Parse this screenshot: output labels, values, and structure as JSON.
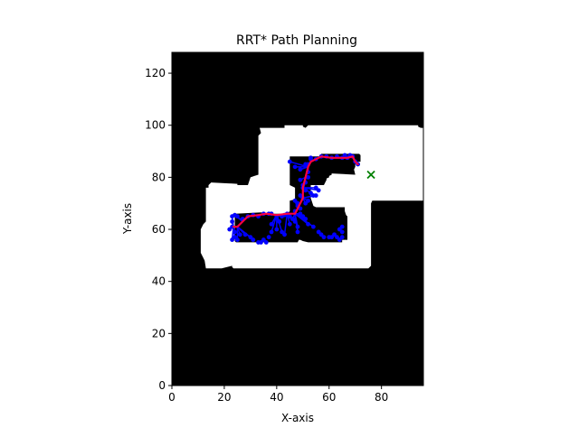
{
  "chart_data": {
    "type": "scatter",
    "title": "RRT* Path Planning",
    "xlabel": "X-axis",
    "ylabel": "Y-axis",
    "xlim": [
      0,
      96
    ],
    "ylim": [
      0,
      128
    ],
    "x_ticks": [
      0,
      20,
      40,
      60,
      80
    ],
    "y_ticks": [
      0,
      20,
      40,
      60,
      80,
      100,
      120
    ],
    "grid": false,
    "legend": "none",
    "colors": {
      "obstacle": "#000000",
      "free_space": "#ffffff",
      "tree": "#0000ff",
      "path": "#ff0040",
      "goal": "#008000"
    },
    "free_space": [
      [
        [
          33.5,
          99
        ],
        [
          34,
          97
        ],
        [
          33,
          96
        ],
        [
          33,
          81
        ],
        [
          31.5,
          80.5
        ],
        [
          30,
          80
        ],
        [
          29,
          77
        ],
        [
          25,
          77
        ],
        [
          25,
          77.5
        ],
        [
          15,
          78
        ],
        [
          14,
          77
        ],
        [
          14,
          76
        ],
        [
          13,
          76
        ],
        [
          13,
          63
        ],
        [
          12,
          62
        ],
        [
          11,
          60
        ],
        [
          11,
          52
        ],
        [
          11,
          51
        ],
        [
          12,
          49
        ],
        [
          12.5,
          48
        ],
        [
          13,
          45
        ],
        [
          14,
          45
        ],
        [
          19,
          45
        ],
        [
          23,
          46
        ],
        [
          23,
          45.5
        ],
        [
          23.5,
          45
        ],
        [
          75,
          45
        ],
        [
          76,
          46
        ],
        [
          76,
          70
        ],
        [
          76.5,
          71
        ],
        [
          96,
          71
        ],
        [
          96,
          99
        ],
        [
          95,
          99
        ],
        [
          94,
          99.5
        ],
        [
          94,
          100
        ],
        [
          52,
          100
        ],
        [
          51,
          99
        ],
        [
          50,
          99.5
        ],
        [
          50,
          100
        ],
        [
          43,
          100
        ],
        [
          43,
          99
        ]
      ],
      [
        [
          45,
          88
        ],
        [
          45,
          77
        ],
        [
          47,
          76
        ],
        [
          47,
          71.5
        ],
        [
          45,
          71
        ],
        [
          45,
          67
        ],
        [
          44,
          66
        ],
        [
          36,
          66
        ],
        [
          34,
          66.5
        ],
        [
          24,
          66
        ],
        [
          24,
          55.5
        ],
        [
          24.5,
          55
        ],
        [
          48,
          55
        ],
        [
          48.5,
          56
        ],
        [
          49,
          56
        ],
        [
          50,
          55.5
        ],
        [
          52,
          55
        ],
        [
          65,
          55
        ],
        [
          65,
          56
        ],
        [
          67,
          56
        ],
        [
          67,
          65
        ],
        [
          66.5,
          65.5
        ],
        [
          66,
          67
        ],
        [
          66,
          68.5
        ],
        [
          55,
          68.5
        ],
        [
          54,
          69
        ],
        [
          53,
          72
        ],
        [
          53,
          77
        ],
        [
          58,
          77
        ],
        [
          59,
          79
        ],
        [
          59,
          79.5
        ],
        [
          60,
          80
        ],
        [
          60,
          80.5
        ],
        [
          61,
          81
        ],
        [
          61,
          81.5
        ],
        [
          70,
          81
        ],
        [
          69.5,
          83
        ],
        [
          70,
          84
        ],
        [
          70,
          85
        ],
        [
          71,
          86
        ],
        [
          72,
          86
        ],
        [
          72,
          88.5
        ],
        [
          71.5,
          89
        ],
        [
          57,
          89
        ],
        [
          56.5,
          88
        ],
        [
          46,
          88
        ]
      ]
    ],
    "tree": [
      [
        45,
        86
      ],
      [
        47,
        84
      ],
      [
        49,
        83
      ],
      [
        51,
        85
      ],
      [
        53,
        87
      ],
      [
        53,
        87.5
      ],
      [
        55,
        87
      ],
      [
        57,
        88
      ],
      [
        59,
        88
      ],
      [
        61,
        87.5
      ],
      [
        63,
        88
      ],
      [
        65,
        87.5
      ],
      [
        67,
        87.5
      ],
      [
        69,
        88
      ],
      [
        70,
        86
      ],
      [
        71,
        85
      ],
      [
        66,
        88.5
      ],
      [
        68,
        88.5
      ],
      [
        52,
        85
      ],
      [
        52,
        82
      ],
      [
        49,
        79
      ],
      [
        50,
        77
      ],
      [
        51,
        78
      ],
      [
        51,
        75
      ],
      [
        53,
        74
      ],
      [
        55,
        73
      ],
      [
        56,
        75
      ],
      [
        55,
        76
      ],
      [
        49,
        73
      ],
      [
        50,
        72
      ],
      [
        47,
        71
      ],
      [
        48,
        70
      ],
      [
        51,
        70
      ],
      [
        52,
        71
      ],
      [
        49,
        68
      ],
      [
        49,
        66
      ],
      [
        50,
        65
      ],
      [
        51,
        64
      ],
      [
        52,
        62
      ],
      [
        54,
        61
      ],
      [
        56,
        59
      ],
      [
        57,
        58
      ],
      [
        58,
        57
      ],
      [
        60,
        57
      ],
      [
        61,
        57
      ],
      [
        62,
        58
      ],
      [
        63,
        57
      ],
      [
        64,
        56
      ],
      [
        65,
        57
      ],
      [
        65,
        59
      ],
      [
        65,
        61
      ],
      [
        48,
        59
      ],
      [
        48,
        61
      ],
      [
        47,
        63
      ],
      [
        46,
        64
      ],
      [
        44,
        66
      ],
      [
        43,
        65.5
      ],
      [
        42,
        65
      ],
      [
        40,
        65
      ],
      [
        38,
        66
      ],
      [
        37,
        66
      ],
      [
        35,
        66
      ],
      [
        33,
        65
      ],
      [
        31,
        65.5
      ],
      [
        29,
        65
      ],
      [
        27,
        64
      ],
      [
        25,
        65
      ],
      [
        24,
        65.5
      ],
      [
        23,
        65
      ],
      [
        23,
        63
      ],
      [
        23,
        61
      ],
      [
        22,
        60
      ],
      [
        24,
        59
      ],
      [
        24,
        57
      ],
      [
        26,
        58
      ],
      [
        28,
        58
      ],
      [
        30,
        57
      ],
      [
        31,
        56
      ],
      [
        33,
        55
      ],
      [
        34,
        55
      ],
      [
        35,
        56
      ],
      [
        36,
        55
      ],
      [
        37,
        57
      ],
      [
        38,
        59
      ],
      [
        38,
        62
      ],
      [
        40,
        60
      ],
      [
        42,
        59
      ],
      [
        43,
        58
      ],
      [
        25,
        56
      ],
      [
        23,
        56
      ],
      [
        41,
        63
      ],
      [
        45,
        62
      ],
      [
        47,
        67
      ],
      [
        48,
        69
      ],
      [
        50,
        76
      ],
      [
        52,
        80
      ],
      [
        54,
        73
      ],
      [
        64,
        60
      ],
      [
        45,
        65
      ]
    ],
    "path": [
      [
        71,
        85
      ],
      [
        70,
        86
      ],
      [
        69,
        88
      ],
      [
        67,
        87.5
      ],
      [
        65,
        87.5
      ],
      [
        61,
        87.5
      ],
      [
        57,
        88
      ],
      [
        55,
        87
      ],
      [
        53,
        86
      ],
      [
        52,
        84
      ],
      [
        51,
        80
      ],
      [
        50,
        76
      ],
      [
        50,
        72
      ],
      [
        48,
        68
      ],
      [
        47,
        66
      ],
      [
        44,
        66
      ],
      [
        40,
        65.5
      ],
      [
        36,
        66
      ],
      [
        33,
        65.5
      ],
      [
        29,
        65
      ],
      [
        27,
        63
      ],
      [
        25,
        61
      ],
      [
        23.5,
        61
      ]
    ],
    "goal": {
      "x": 76,
      "y": 81
    }
  }
}
